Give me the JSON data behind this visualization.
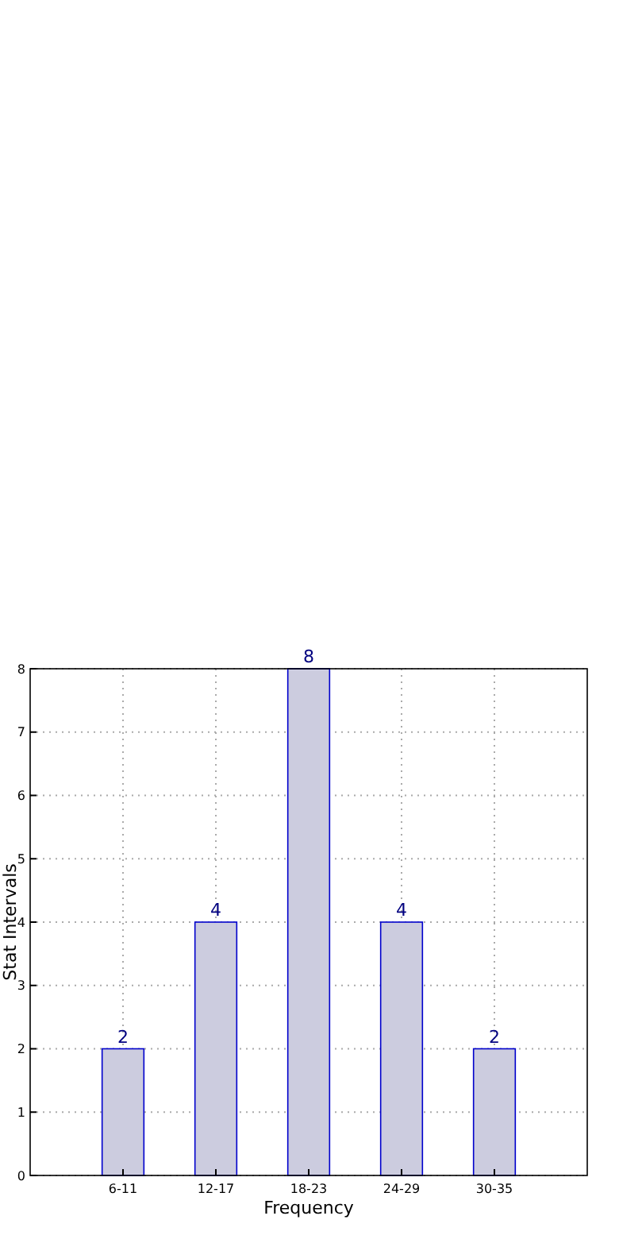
{
  "chart_data": {
    "type": "bar",
    "xlabel": "Frequency",
    "ylabel": "Stat Intervals",
    "categories": [
      "6-11",
      "12-17",
      "18-23",
      "24-29",
      "30-35"
    ],
    "values": [
      2,
      4,
      8,
      4,
      2
    ],
    "color": "#ccccdf",
    "ylim": [
      0,
      8
    ],
    "yticks": [
      0,
      1,
      2,
      3,
      4,
      5,
      6,
      7,
      8
    ],
    "grid": true,
    "data_labels": true
  }
}
